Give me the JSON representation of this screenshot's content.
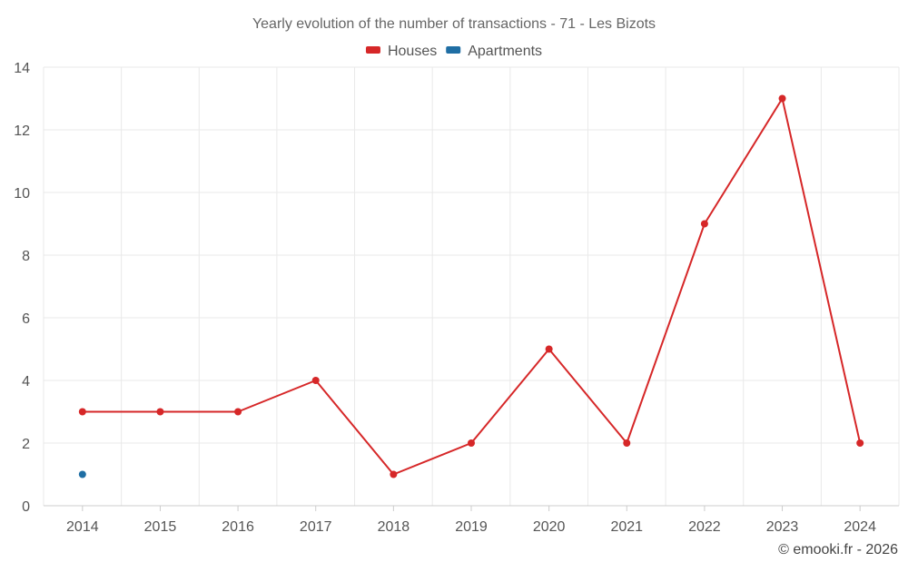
{
  "chart_data": {
    "type": "line",
    "title": "Yearly evolution of the number of transactions - 71 - Les Bizots",
    "xlabel": "",
    "ylabel": "",
    "x": [
      "2014",
      "2015",
      "2016",
      "2017",
      "2018",
      "2019",
      "2020",
      "2021",
      "2022",
      "2023",
      "2024"
    ],
    "ylim": [
      0,
      14
    ],
    "yticks": [
      0,
      2,
      4,
      6,
      8,
      10,
      12,
      14
    ],
    "grid": true,
    "legend_position": "top-center",
    "series": [
      {
        "name": "Houses",
        "color": "#d62728",
        "values": [
          3,
          3,
          3,
          4,
          1,
          2,
          5,
          2,
          9,
          13,
          2
        ]
      },
      {
        "name": "Apartments",
        "color": "#1f6ea4",
        "values": [
          1,
          null,
          null,
          null,
          null,
          null,
          null,
          null,
          null,
          null,
          null
        ]
      }
    ]
  },
  "footer": {
    "credit": "© emooki.fr - 2026"
  }
}
